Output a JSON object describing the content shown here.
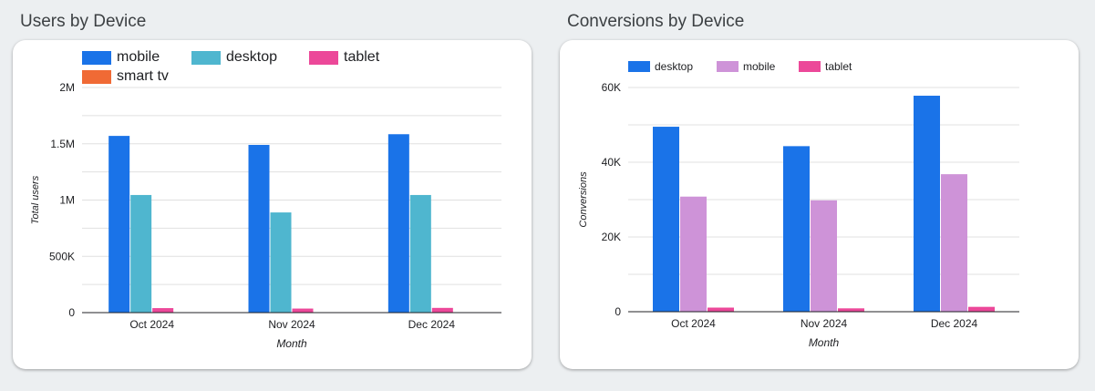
{
  "colors": {
    "mobile_blue": "#1a73e8",
    "desktop_teal": "#4fb6cf",
    "tablet_pink": "#ec4899",
    "smart_tv_orange": "#f06a35",
    "desktop_blue": "#1a73e8",
    "mobile_lilac": "#ce93d8",
    "grid": "#e0e0e0",
    "axis": "#202124"
  },
  "panel1": {
    "title": "Users by Device"
  },
  "panel2": {
    "title": "Conversions by Device"
  },
  "chart_data": [
    {
      "type": "bar",
      "title": "Users by Device",
      "xlabel": "Month",
      "ylabel": "Total users",
      "categories": [
        "Oct 2024",
        "Nov 2024",
        "Dec 2024"
      ],
      "series": [
        {
          "name": "mobile",
          "color": "#1a73e8",
          "values": [
            1570000,
            1490000,
            1585000
          ]
        },
        {
          "name": "desktop",
          "color": "#4fb6cf",
          "values": [
            1045000,
            890000,
            1045000
          ]
        },
        {
          "name": "tablet",
          "color": "#ec4899",
          "values": [
            40000,
            36000,
            42000
          ]
        },
        {
          "name": "smart tv",
          "color": "#f06a35",
          "values": [
            0,
            0,
            0
          ]
        }
      ],
      "ylim": [
        0,
        2000000
      ],
      "yticks": [
        0,
        500000,
        1000000,
        1500000,
        2000000
      ],
      "ytick_labels": [
        "0",
        "500K",
        "1M",
        "1.5M",
        "2M"
      ],
      "grid": true,
      "legend": "top-left"
    },
    {
      "type": "bar",
      "title": "Conversions by Device",
      "xlabel": "Month",
      "ylabel": "Conversions",
      "categories": [
        "Oct 2024",
        "Nov 2024",
        "Dec 2024"
      ],
      "series": [
        {
          "name": "desktop",
          "color": "#1a73e8",
          "values": [
            49500,
            44300,
            57800
          ]
        },
        {
          "name": "mobile",
          "color": "#ce93d8",
          "values": [
            30800,
            29800,
            36800
          ]
        },
        {
          "name": "tablet",
          "color": "#ec4899",
          "values": [
            1100,
            900,
            1300
          ]
        }
      ],
      "ylim": [
        0,
        60000
      ],
      "yticks": [
        0,
        20000,
        40000,
        60000
      ],
      "ytick_labels": [
        "0",
        "20K",
        "40K",
        "60K"
      ],
      "grid": true,
      "legend": "top-left"
    }
  ]
}
